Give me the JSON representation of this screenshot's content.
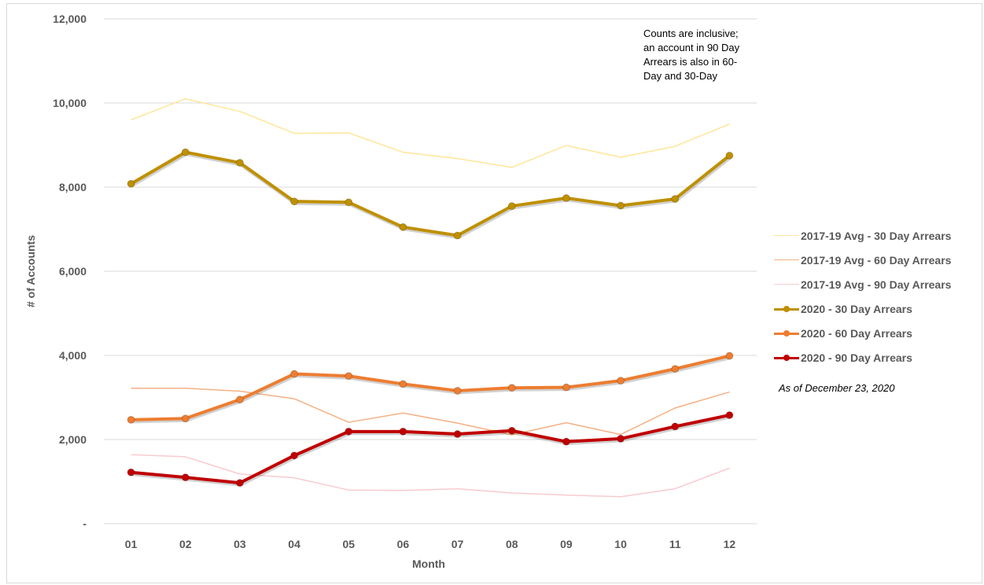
{
  "chart_data": {
    "type": "line",
    "title": "",
    "xlabel": "Month",
    "ylabel": "# of Accounts",
    "categories": [
      "01",
      "02",
      "03",
      "04",
      "05",
      "06",
      "07",
      "08",
      "09",
      "10",
      "11",
      "12"
    ],
    "ylim": [
      0,
      12000
    ],
    "yticks": [
      0,
      2000,
      4000,
      6000,
      8000,
      10000,
      12000
    ],
    "ytick_labels": [
      "-",
      "2,000",
      "4,000",
      "6,000",
      "8,000",
      "10,000",
      "12,000"
    ],
    "grid": true,
    "legend_position": "right",
    "annotation": "Counts are inclusive;\nan account in 90 Day\nArrears is also in 60-\nDay and 30-Day",
    "note": "As of December 23, 2020",
    "series": [
      {
        "name": "2017-19 Avg - 30 Day Arrears",
        "color": "#ffe699",
        "markers": false,
        "values": [
          9600,
          10100,
          9800,
          9280,
          9290,
          8830,
          8680,
          8470,
          8990,
          8710,
          8970,
          9500
        ]
      },
      {
        "name": "2017-19 Avg - 60 Day Arrears",
        "color": "#f4b183",
        "markers": false,
        "values": [
          3220,
          3220,
          3150,
          2970,
          2410,
          2630,
          2390,
          2110,
          2400,
          2120,
          2750,
          3130
        ]
      },
      {
        "name": "2017-19 Avg - 90 Day Arrears",
        "color": "#f8cbd0",
        "markers": false,
        "values": [
          1640,
          1590,
          1180,
          1090,
          800,
          790,
          830,
          730,
          680,
          640,
          830,
          1320
        ]
      },
      {
        "name": "2020 - 30 Day Arrears",
        "color": "#bf9000",
        "markers": true,
        "values": [
          8080,
          8830,
          8580,
          7660,
          7640,
          7050,
          6850,
          7550,
          7740,
          7560,
          7720,
          8750
        ]
      },
      {
        "name": "2020 - 60 Day Arrears",
        "color": "#ed7d31",
        "markers": true,
        "values": [
          2470,
          2500,
          2950,
          3560,
          3510,
          3320,
          3160,
          3230,
          3240,
          3400,
          3680,
          3990
        ]
      },
      {
        "name": "2020 - 90 Day Arrears",
        "color": "#c00000",
        "markers": true,
        "values": [
          1220,
          1100,
          970,
          1620,
          2190,
          2190,
          2130,
          2210,
          1950,
          2020,
          2310,
          2580
        ]
      }
    ]
  }
}
